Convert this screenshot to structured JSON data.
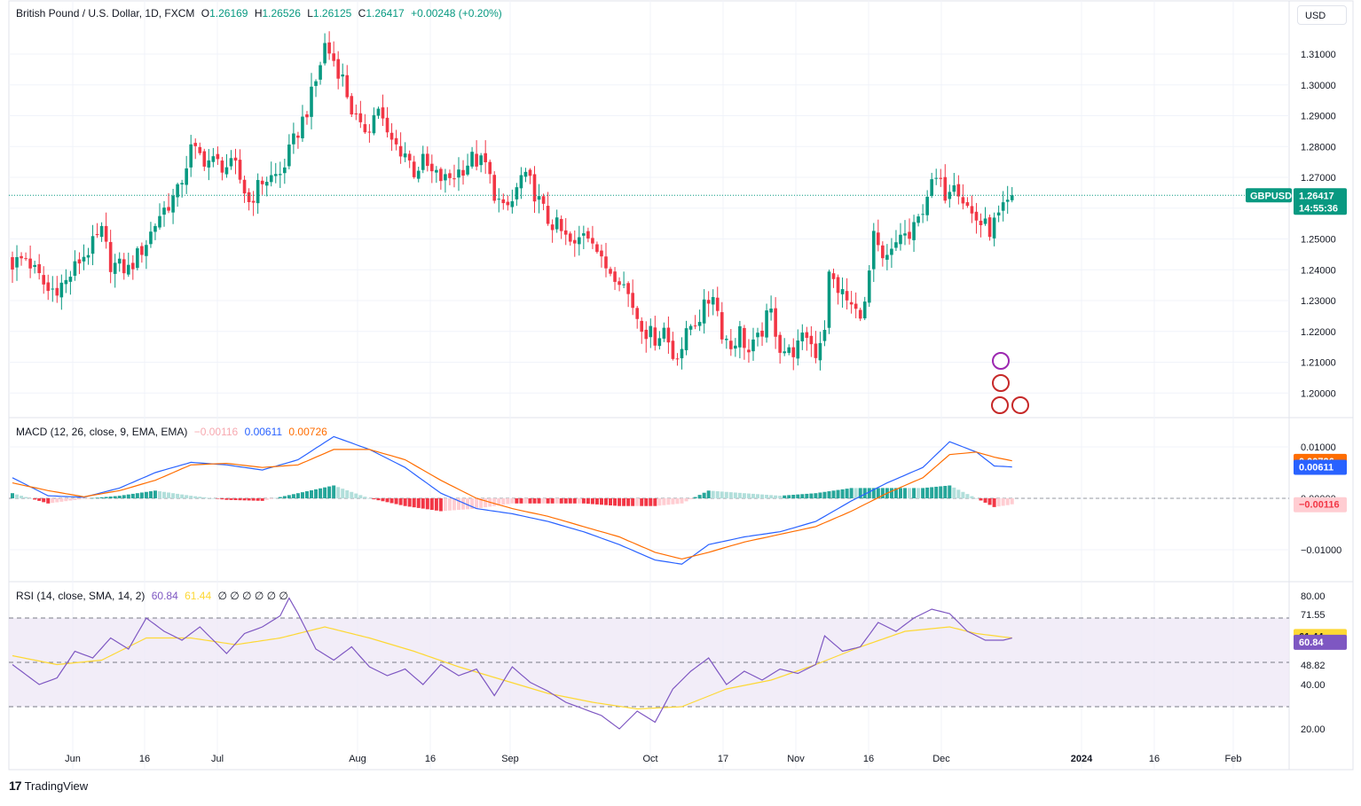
{
  "header": {
    "symbol": "British Pound / U.S. Dollar, 1D, FXCM",
    "open_label": "O",
    "open": "1.26169",
    "high_label": "H",
    "high": "1.26526",
    "low_label": "L",
    "low": "1.26125",
    "close_label": "C",
    "close": "1.26417",
    "change": "+0.00248 (+0.20%)"
  },
  "currency_button": "USD",
  "branding": "TradingView",
  "price_tag": {
    "symbol": "GBPUSD",
    "price": "1.26417",
    "countdown": "14:55:36"
  },
  "macd_legend": {
    "label": "MACD (12, 26, close, 9, EMA, EMA)",
    "hist": "−0.00116",
    "macd": "0.00611",
    "signal": "0.00726"
  },
  "rsi_legend": {
    "label": "RSI (14, close, SMA, 14, 2)",
    "rsi": "60.84",
    "sma": "61.44",
    "extra": "∅ ∅ ∅ ∅ ∅ ∅"
  },
  "x_axis_labels": [
    "Jun",
    "16",
    "Jul",
    "Aug",
    "16",
    "Sep",
    "Oct",
    "17",
    "Nov",
    "16",
    "Dec",
    "2024",
    "16",
    "Feb"
  ],
  "colors": {
    "up": "#089981",
    "down": "#f23645",
    "macd": "#2962ff",
    "signal": "#ff6d00",
    "rsi": "#7e57c2",
    "rsi_sma": "#fdd835"
  },
  "chart_data": [
    {
      "type": "candlestick",
      "title": "British Pound / U.S. Dollar, 1D, FXCM",
      "y_ticks": [
        "1.31000",
        "1.30000",
        "1.29000",
        "1.28000",
        "1.27000",
        "1.26000",
        "1.25000",
        "1.24000",
        "1.23000",
        "1.22000",
        "1.21000",
        "1.20000"
      ],
      "ylim": [
        1.1925,
        1.3225
      ],
      "last_price": 1.26417,
      "close_path": [
        [
          0,
          1.242
        ],
        [
          3,
          1.244
        ],
        [
          8,
          1.233
        ],
        [
          12,
          1.236
        ],
        [
          15,
          1.243
        ],
        [
          18,
          1.248
        ],
        [
          20,
          1.252
        ],
        [
          22,
          1.242
        ],
        [
          26,
          1.24
        ],
        [
          30,
          1.249
        ],
        [
          33,
          1.258
        ],
        [
          37,
          1.265
        ],
        [
          40,
          1.279
        ],
        [
          43,
          1.276
        ],
        [
          47,
          1.274
        ],
        [
          50,
          1.273
        ],
        [
          53,
          1.262
        ],
        [
          56,
          1.269
        ],
        [
          60,
          1.271
        ],
        [
          62,
          1.278
        ],
        [
          64,
          1.285
        ],
        [
          66,
          1.292
        ],
        [
          68,
          1.301
        ],
        [
          70,
          1.313
        ],
        [
          72,
          1.308
        ],
        [
          74,
          1.302
        ],
        [
          76,
          1.292
        ],
        [
          78,
          1.285
        ],
        [
          80,
          1.287
        ],
        [
          82,
          1.293
        ],
        [
          84,
          1.283
        ],
        [
          86,
          1.28
        ],
        [
          88,
          1.278
        ],
        [
          90,
          1.272
        ],
        [
          92,
          1.275
        ],
        [
          94,
          1.271
        ],
        [
          97,
          1.269
        ],
        [
          100,
          1.272
        ],
        [
          103,
          1.276
        ],
        [
          106,
          1.274
        ],
        [
          108,
          1.265
        ],
        [
          110,
          1.259
        ],
        [
          112,
          1.262
        ],
        [
          114,
          1.27
        ],
        [
          116,
          1.268
        ],
        [
          118,
          1.262
        ],
        [
          120,
          1.256
        ],
        [
          122,
          1.254
        ],
        [
          124,
          1.25
        ],
        [
          126,
          1.247
        ],
        [
          128,
          1.253
        ],
        [
          130,
          1.251
        ],
        [
          132,
          1.242
        ],
        [
          134,
          1.24
        ],
        [
          136,
          1.238
        ],
        [
          138,
          1.232
        ],
        [
          140,
          1.225
        ],
        [
          142,
          1.22
        ],
        [
          144,
          1.218
        ],
        [
          146,
          1.221
        ],
        [
          148,
          1.212
        ],
        [
          150,
          1.215
        ],
        [
          152,
          1.222
        ],
        [
          154,
          1.225
        ],
        [
          156,
          1.23
        ],
        [
          157,
          1.233
        ],
        [
          159,
          1.22
        ],
        [
          161,
          1.215
        ],
        [
          163,
          1.22
        ],
        [
          165,
          1.213
        ],
        [
          167,
          1.217
        ],
        [
          169,
          1.224
        ],
        [
          170,
          1.226
        ],
        [
          172,
          1.215
        ],
        [
          174,
          1.213
        ],
        [
          176,
          1.215
        ],
        [
          178,
          1.219
        ],
        [
          180,
          1.213
        ],
        [
          182,
          1.222
        ],
        [
          183,
          1.238
        ],
        [
          185,
          1.234
        ],
        [
          187,
          1.23
        ],
        [
          189,
          1.226
        ],
        [
          191,
          1.228
        ],
        [
          193,
          1.25
        ],
        [
          195,
          1.242
        ],
        [
          197,
          1.245
        ],
        [
          199,
          1.252
        ],
        [
          201,
          1.25
        ],
        [
          203,
          1.256
        ],
        [
          205,
          1.265
        ],
        [
          207,
          1.269
        ],
        [
          209,
          1.265
        ],
        [
          211,
          1.27
        ],
        [
          213,
          1.263
        ],
        [
          215,
          1.258
        ],
        [
          217,
          1.255
        ],
        [
          219,
          1.253
        ],
        [
          221,
          1.257
        ],
        [
          223,
          1.261
        ],
        [
          224,
          1.2642
        ]
      ]
    },
    {
      "type": "macd",
      "title": "MACD (12, 26, close, 9, EMA, EMA)",
      "y_ticks": [
        "0.01000",
        "0.00000",
        "−0.01000"
      ],
      "ylim": [
        -0.0135,
        0.0135
      ],
      "last": {
        "histogram": -0.00116,
        "macd": 0.00611,
        "signal": 0.00726
      },
      "macd_path": [
        [
          0,
          0.004
        ],
        [
          8,
          0.0005
        ],
        [
          16,
          0.0002
        ],
        [
          24,
          0.002
        ],
        [
          32,
          0.005
        ],
        [
          40,
          0.007
        ],
        [
          48,
          0.0065
        ],
        [
          56,
          0.0055
        ],
        [
          64,
          0.0075
        ],
        [
          72,
          0.012
        ],
        [
          80,
          0.0095
        ],
        [
          88,
          0.006
        ],
        [
          96,
          0.001
        ],
        [
          104,
          -0.002
        ],
        [
          112,
          -0.003
        ],
        [
          120,
          -0.0045
        ],
        [
          128,
          -0.0065
        ],
        [
          136,
          -0.009
        ],
        [
          144,
          -0.012
        ],
        [
          150,
          -0.0128
        ],
        [
          156,
          -0.009
        ],
        [
          164,
          -0.0075
        ],
        [
          172,
          -0.0065
        ],
        [
          180,
          -0.0045
        ],
        [
          188,
          -0.0005
        ],
        [
          196,
          0.003
        ],
        [
          204,
          0.006
        ],
        [
          210,
          0.011
        ],
        [
          216,
          0.009
        ],
        [
          220,
          0.0063
        ],
        [
          224,
          0.0061
        ]
      ],
      "signal_path": [
        [
          0,
          0.003
        ],
        [
          8,
          0.0015
        ],
        [
          16,
          0.0003
        ],
        [
          24,
          0.0015
        ],
        [
          32,
          0.0035
        ],
        [
          40,
          0.0065
        ],
        [
          48,
          0.0068
        ],
        [
          56,
          0.006
        ],
        [
          64,
          0.0065
        ],
        [
          72,
          0.0095
        ],
        [
          80,
          0.0095
        ],
        [
          88,
          0.0075
        ],
        [
          96,
          0.0035
        ],
        [
          104,
          0.0
        ],
        [
          112,
          -0.002
        ],
        [
          120,
          -0.0035
        ],
        [
          128,
          -0.0055
        ],
        [
          136,
          -0.0075
        ],
        [
          144,
          -0.0105
        ],
        [
          150,
          -0.0118
        ],
        [
          156,
          -0.0105
        ],
        [
          164,
          -0.0085
        ],
        [
          172,
          -0.007
        ],
        [
          180,
          -0.0055
        ],
        [
          188,
          -0.0025
        ],
        [
          196,
          0.001
        ],
        [
          204,
          0.004
        ],
        [
          210,
          0.0085
        ],
        [
          216,
          0.009
        ],
        [
          220,
          0.008
        ],
        [
          224,
          0.0073
        ]
      ]
    },
    {
      "type": "rsi",
      "title": "RSI (14, close, SMA, 14, 2)",
      "y_ticks": [
        "80.00",
        "71.55",
        "48.82",
        "40.00",
        "20.00"
      ],
      "ylim": [
        20,
        80
      ],
      "bands": [
        70,
        50,
        30
      ],
      "last": {
        "rsi": 60.84,
        "sma": 61.44
      },
      "rsi_path": [
        [
          0,
          49
        ],
        [
          6,
          40
        ],
        [
          10,
          43
        ],
        [
          14,
          55
        ],
        [
          18,
          52
        ],
        [
          22,
          61
        ],
        [
          26,
          56
        ],
        [
          30,
          70
        ],
        [
          34,
          64
        ],
        [
          38,
          60
        ],
        [
          42,
          66
        ],
        [
          46,
          58
        ],
        [
          48,
          54
        ],
        [
          52,
          63
        ],
        [
          56,
          66
        ],
        [
          60,
          71
        ],
        [
          62,
          79
        ],
        [
          64,
          72
        ],
        [
          68,
          56
        ],
        [
          72,
          51
        ],
        [
          76,
          57
        ],
        [
          80,
          48
        ],
        [
          84,
          44
        ],
        [
          88,
          47
        ],
        [
          92,
          40
        ],
        [
          96,
          49
        ],
        [
          100,
          44
        ],
        [
          104,
          47
        ],
        [
          108,
          35
        ],
        [
          112,
          48
        ],
        [
          116,
          41
        ],
        [
          120,
          37
        ],
        [
          124,
          32
        ],
        [
          128,
          29
        ],
        [
          132,
          26
        ],
        [
          136,
          20
        ],
        [
          140,
          28
        ],
        [
          144,
          23
        ],
        [
          148,
          38
        ],
        [
          152,
          46
        ],
        [
          156,
          52
        ],
        [
          160,
          40
        ],
        [
          164,
          46
        ],
        [
          168,
          42
        ],
        [
          172,
          47
        ],
        [
          176,
          45
        ],
        [
          180,
          49
        ],
        [
          182,
          62
        ],
        [
          186,
          55
        ],
        [
          190,
          57
        ],
        [
          194,
          68
        ],
        [
          198,
          64
        ],
        [
          202,
          70
        ],
        [
          206,
          74
        ],
        [
          210,
          72
        ],
        [
          214,
          64
        ],
        [
          218,
          60
        ],
        [
          222,
          60
        ],
        [
          224,
          61
        ]
      ],
      "sma_path": [
        [
          0,
          53
        ],
        [
          10,
          49
        ],
        [
          20,
          51
        ],
        [
          30,
          61
        ],
        [
          40,
          61
        ],
        [
          50,
          58
        ],
        [
          60,
          61
        ],
        [
          70,
          66
        ],
        [
          80,
          61
        ],
        [
          90,
          55
        ],
        [
          100,
          48
        ],
        [
          110,
          42
        ],
        [
          120,
          36
        ],
        [
          130,
          32
        ],
        [
          140,
          29
        ],
        [
          150,
          30
        ],
        [
          160,
          38
        ],
        [
          170,
          42
        ],
        [
          180,
          49
        ],
        [
          190,
          57
        ],
        [
          200,
          64
        ],
        [
          210,
          66
        ],
        [
          216,
          63
        ],
        [
          220,
          62
        ],
        [
          224,
          61
        ]
      ]
    }
  ]
}
